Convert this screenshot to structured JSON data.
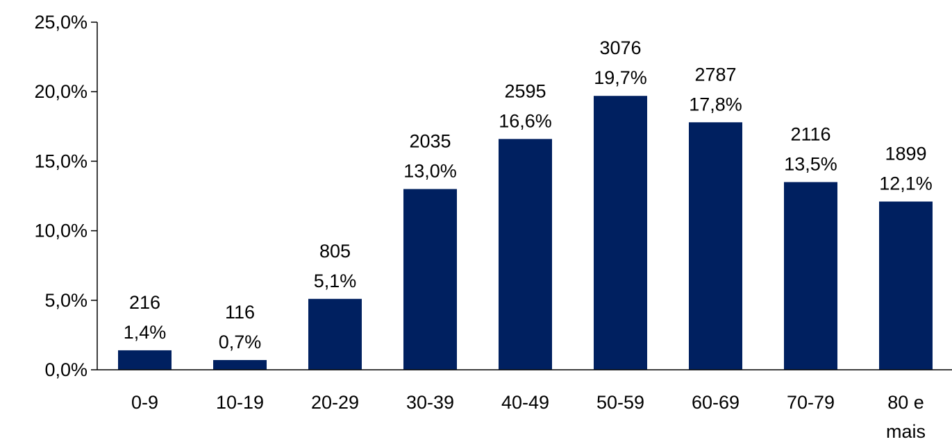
{
  "chart_data": {
    "type": "bar",
    "categories": [
      "0-9",
      "10-19",
      "20-29",
      "30-39",
      "40-49",
      "50-59",
      "60-69",
      "70-79",
      "80 e mais"
    ],
    "values": [
      1.4,
      0.7,
      5.1,
      13.0,
      16.6,
      19.7,
      17.8,
      13.5,
      12.1
    ],
    "counts": [
      "216",
      "116",
      "805",
      "2035",
      "2595",
      "3076",
      "2787",
      "2116",
      "1899"
    ],
    "value_labels": [
      "1,4%",
      "0,7%",
      "5,1%",
      "13,0%",
      "16,6%",
      "19,7%",
      "17,8%",
      "13,5%",
      "12,1%"
    ],
    "y_ticks": [
      0,
      5,
      10,
      15,
      20,
      25
    ],
    "y_tick_labels": [
      "0,0%",
      "5,0%",
      "10,0%",
      "15,0%",
      "20,0%",
      "25,0%"
    ],
    "ylim": [
      0,
      25
    ],
    "grid": false,
    "legend": "none",
    "bar_color": "#002060",
    "axis_color": "#000000"
  }
}
